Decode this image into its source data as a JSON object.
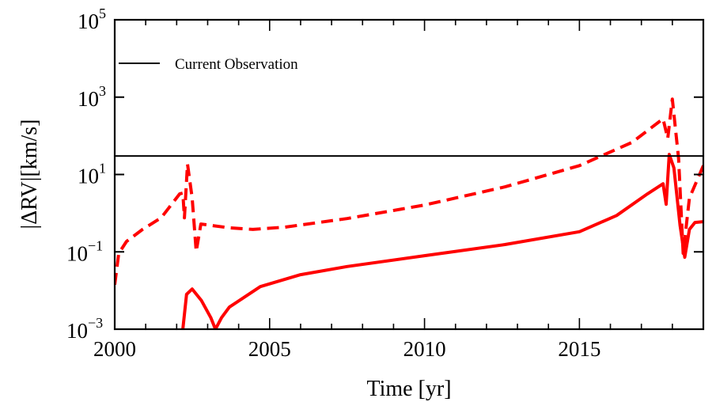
{
  "chart_data": {
    "type": "line",
    "title": "",
    "xlabel": "Time [yr]",
    "ylabel": "|ΔRV|[km/s]",
    "xlim": [
      2000,
      2019
    ],
    "ylim": [
      0.001,
      100000
    ],
    "yscale": "log",
    "grid": false,
    "legend_position": "top-left",
    "x_ticks": [
      {
        "value": 2000,
        "label": "2000"
      },
      {
        "value": 2005,
        "label": "2005"
      },
      {
        "value": 2010,
        "label": "2010"
      },
      {
        "value": 2015,
        "label": "2015"
      }
    ],
    "y_ticks": [
      {
        "exp": -3,
        "base": "10",
        "sup": "−3"
      },
      {
        "exp": -1,
        "base": "10",
        "sup": "−1"
      },
      {
        "exp": 1,
        "base": "10",
        "sup": "1"
      },
      {
        "exp": 3,
        "base": "10",
        "sup": "3"
      },
      {
        "exp": 5,
        "base": "10",
        "sup": "5"
      }
    ],
    "reference_lines": [
      {
        "name": "Current Observation",
        "y": 30,
        "color": "#000000",
        "style": "solid"
      }
    ],
    "series": [
      {
        "name": "dashed",
        "color": "#ff0000",
        "style": "dashed",
        "x": [
          2000.0,
          2000.13,
          2000.38,
          2000.9,
          2001.5,
          2002.1,
          2002.2,
          2002.25,
          2002.35,
          2002.5,
          2002.63,
          2002.78,
          2003.7,
          2004.46,
          2005.5,
          2007.5,
          2010.0,
          2012.6,
          2015.0,
          2016.7,
          2017.7,
          2017.85,
          2018.0,
          2018.2,
          2018.35,
          2018.55,
          2019.0
        ],
        "log10_y": [
          -1.85,
          -1.04,
          -0.73,
          -0.42,
          -0.12,
          0.5,
          0.52,
          -0.12,
          1.27,
          0.39,
          -0.99,
          -0.28,
          -0.38,
          -0.42,
          -0.36,
          -0.14,
          0.21,
          0.68,
          1.23,
          1.83,
          2.44,
          1.93,
          2.95,
          1.42,
          -1.04,
          0.39,
          1.23
        ]
      },
      {
        "name": "solid",
        "color": "#ff0000",
        "style": "solid",
        "x": [
          2002.2,
          2002.32,
          2002.5,
          2002.8,
          2003.1,
          2003.25,
          2003.45,
          2003.7,
          2004.7,
          2006.0,
          2007.5,
          2010.0,
          2012.6,
          2015.0,
          2016.2,
          2017.2,
          2017.7,
          2017.8,
          2017.9,
          2018.05,
          2018.25,
          2018.4,
          2018.55,
          2018.73,
          2019.0
        ],
        "log10_y": [
          -3.0,
          -2.1,
          -1.96,
          -2.26,
          -2.7,
          -3.0,
          -2.7,
          -2.43,
          -1.9,
          -1.59,
          -1.38,
          -1.1,
          -0.81,
          -0.48,
          -0.06,
          0.5,
          0.76,
          0.23,
          1.52,
          1.17,
          -0.32,
          -1.14,
          -0.42,
          -0.24,
          -0.22
        ]
      }
    ]
  }
}
